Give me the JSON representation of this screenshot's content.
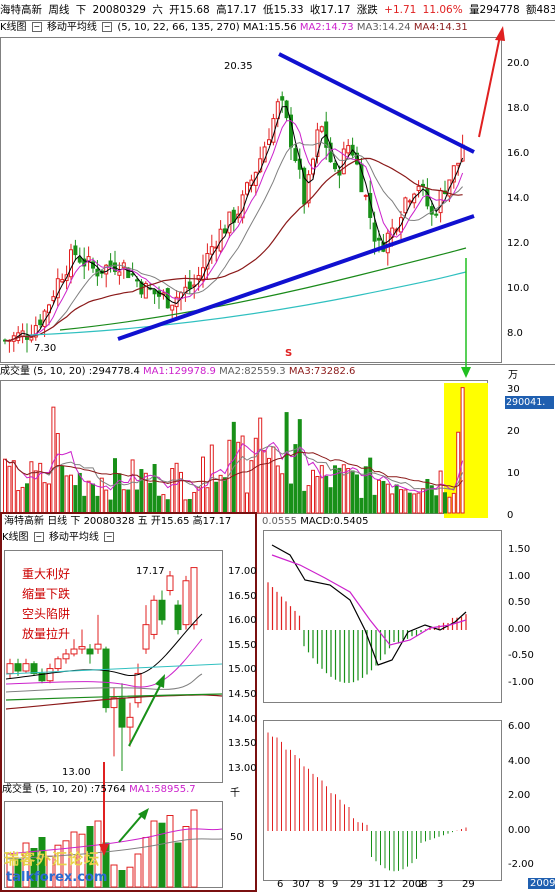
{
  "header": {
    "name": "海特高新",
    "period": "周线",
    "direction": "下",
    "date": "20080329",
    "weekday": "六",
    "open": "开15.68",
    "high": "高17.17",
    "low": "低15.33",
    "close": "收17.17",
    "change_label": "涨跌",
    "change": "+1.71",
    "pct": "11.06%",
    "volume": "量294778",
    "amount": "额483"
  },
  "price_panel": {
    "title": "K线图",
    "ma_title": "移动平均线",
    "ma_params": "(5, 10, 22, 66, 135, 270)",
    "ma1": "MA1:15.56",
    "ma2": "MA2:14.73",
    "ma3": "MA3:14.24",
    "ma4": "MA4:14.31",
    "high_mark": "20.35",
    "low_mark": "7.30",
    "s_mark": "S",
    "yticks": [
      "20.0",
      "18.0",
      "16.0",
      "14.0",
      "12.0",
      "10.0",
      "8.0"
    ]
  },
  "volume_panel": {
    "title": "成交量",
    "params": "(5, 10, 20)",
    "value": ":294778.4",
    "ma1": "MA1:129978.9",
    "ma2": "MA2:82559.3",
    "ma3": "MA3:73282.6",
    "unit": "万",
    "yticks": [
      "30",
      "20",
      "10",
      "0"
    ],
    "box_value": "290041."
  },
  "inset": {
    "name": "海特高新",
    "period": "日线",
    "direction": "下",
    "date": "20080328",
    "weekday": "五",
    "open": "开15.65",
    "high": "高17.17",
    "kline": "K线图",
    "ma_title": "移动平均线",
    "high_mark": "17.17",
    "low_mark": "13.00",
    "yticks": [
      "17.00",
      "16.50",
      "16.00",
      "15.50",
      "15.00",
      "14.50",
      "14.00",
      "13.50",
      "13.00"
    ],
    "notes": [
      "重大利好",
      "缩量下跌",
      "空头陷阱",
      "放量拉升"
    ],
    "vol_title": "成交量",
    "vol_params": "(5, 10, 20)",
    "vol_value": ":75764",
    "vol_ma1": "MA1:58955.7",
    "vol_unit": "千",
    "vol_tick": "50"
  },
  "macd_panel": {
    "value": "0.0555",
    "macd": "MACD:0.5405",
    "yticks": [
      "1.50",
      "1.00",
      "0.50",
      "0.00",
      "-0.50",
      "-1.00"
    ]
  },
  "lower_panel": {
    "yticks": [
      "6.00",
      "4.00",
      "2.00",
      "0.00",
      "-2.00"
    ]
  },
  "xaxis": {
    "labels": [
      "6",
      "30",
      "7",
      "8",
      "9",
      "29",
      "31",
      "12",
      "2008",
      "2",
      "3",
      "29"
    ],
    "year_box": "2009"
  },
  "watermark": {
    "cn": "瑞客外汇论坛",
    "url": "talkforex.com"
  },
  "colors": {
    "up": "#e02020",
    "down": "#189018",
    "ma1": "#000000",
    "ma2": "#cc22cc",
    "ma3": "#808080",
    "ma4": "#8b1a1a",
    "ma5": "#1a8a1a",
    "ma6": "#30c0c0",
    "trend": "#1010d0",
    "highlight": "#ffff00"
  }
}
